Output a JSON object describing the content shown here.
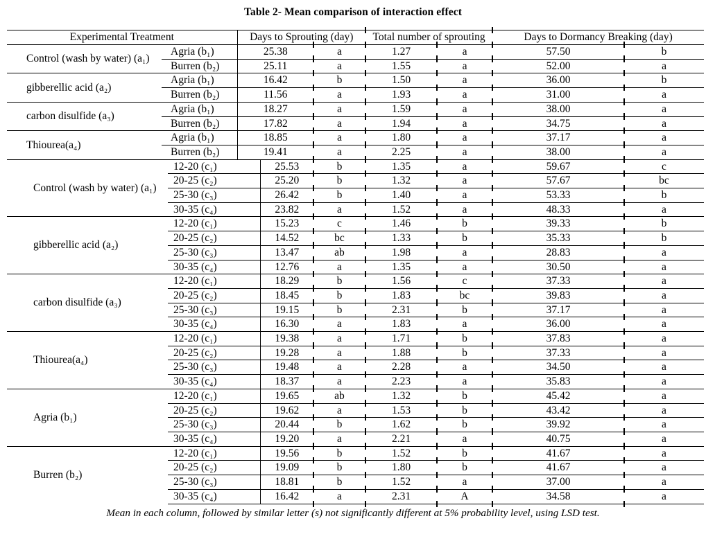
{
  "title": "Table 2- Mean comparison of interaction effect",
  "colors": {
    "ink": "#000000",
    "background": "#ffffff"
  },
  "table": {
    "headers": {
      "treatment": "Experimental Treatment",
      "days_sprouting": "Days to Sprouting (day)",
      "total_sprouting": "Total number of sprouting",
      "days_dormancy": "Days to Dormancy Breaking (day)"
    },
    "sections": [
      {
        "groups": [
          {
            "treatment": "Control (wash by water) (a₁)",
            "rows": [
              {
                "sub": "Agria (b₁)",
                "cells": [
                  "25.38",
                  "a",
                  "1.27",
                  "a",
                  "57.50",
                  "b"
                ]
              },
              {
                "sub": "Burren (b₂)",
                "cells": [
                  "25.11",
                  "a",
                  "1.55",
                  "a",
                  "52.00",
                  "a"
                ]
              }
            ]
          },
          {
            "treatment": "gibberellic acid (a₂)",
            "rows": [
              {
                "sub": "Agria (b₁)",
                "cells": [
                  "16.42",
                  "b",
                  "1.50",
                  "a",
                  "36.00",
                  "b"
                ]
              },
              {
                "sub": "Burren (b₂)",
                "cells": [
                  "11.56",
                  "a",
                  "1.93",
                  "a",
                  "31.00",
                  "a"
                ]
              }
            ]
          },
          {
            "treatment": "carbon disulfide (a₃)",
            "rows": [
              {
                "sub": "Agria (b₁)",
                "cells": [
                  "18.27",
                  "a",
                  "1.59",
                  "a",
                  "38.00",
                  "a"
                ]
              },
              {
                "sub": "Burren (b₂)",
                "cells": [
                  "17.82",
                  "a",
                  "1.94",
                  "a",
                  "34.75",
                  "a"
                ]
              }
            ]
          },
          {
            "treatment": "Thiourea(a₄)",
            "rows": [
              {
                "sub": "Agria (b₁)",
                "cells": [
                  "18.85",
                  "a",
                  "1.80",
                  "a",
                  "37.17",
                  "a"
                ]
              },
              {
                "sub": "Burren (b₂)",
                "cells": [
                  "19.41",
                  "a",
                  "2.25",
                  "a",
                  "38.00",
                  "a"
                ]
              }
            ]
          }
        ]
      },
      {
        "groups": [
          {
            "treatment": "Control (wash by water) (a₁)",
            "rows": [
              {
                "sub": "12-20 (c₁)",
                "cells": [
                  "25.53",
                  "b",
                  "1.35",
                  "a",
                  "59.67",
                  "c"
                ]
              },
              {
                "sub": "20-25 (c₂)",
                "cells": [
                  "25.20",
                  "b",
                  "1.32",
                  "a",
                  "57.67",
                  "bc"
                ]
              },
              {
                "sub": "25-30 (c₃)",
                "cells": [
                  "26.42",
                  "b",
                  "1.40",
                  "a",
                  "53.33",
                  "b"
                ]
              },
              {
                "sub": "30-35 (c₄)",
                "cells": [
                  "23.82",
                  "a",
                  "1.52",
                  "a",
                  "48.33",
                  "a"
                ]
              }
            ]
          },
          {
            "treatment": "gibberellic acid (a₂)",
            "rows": [
              {
                "sub": "12-20 (c₁)",
                "cells": [
                  "15.23",
                  "c",
                  "1.46",
                  "b",
                  "39.33",
                  "b"
                ]
              },
              {
                "sub": "20-25 (c₂)",
                "cells": [
                  "14.52",
                  "bc",
                  "1.33",
                  "b",
                  "35.33",
                  "b"
                ]
              },
              {
                "sub": "25-30 (c₃)",
                "cells": [
                  "13.47",
                  "ab",
                  "1.98",
                  "a",
                  "28.83",
                  "a"
                ]
              },
              {
                "sub": "30-35 (c₄)",
                "cells": [
                  "12.76",
                  "a",
                  "1.35",
                  "a",
                  "30.50",
                  "a"
                ]
              }
            ]
          },
          {
            "treatment": "carbon disulfide (a₃)",
            "rows": [
              {
                "sub": "12-20 (c₁)",
                "cells": [
                  "18.29",
                  "b",
                  "1.56",
                  "c",
                  "37.33",
                  "a"
                ]
              },
              {
                "sub": "20-25 (c₂)",
                "cells": [
                  "18.45",
                  "b",
                  "1.83",
                  "bc",
                  "39.83",
                  "a"
                ]
              },
              {
                "sub": "25-30 (c₃)",
                "cells": [
                  "19.15",
                  "b",
                  "2.31",
                  "b",
                  "37.17",
                  "a"
                ]
              },
              {
                "sub": "30-35 (c₄)",
                "cells": [
                  "16.30",
                  "a",
                  "1.83",
                  "a",
                  "36.00",
                  "a"
                ]
              }
            ]
          },
          {
            "treatment": "Thiourea(a₄)",
            "rows": [
              {
                "sub": "12-20 (c₁)",
                "cells": [
                  "19.38",
                  "a",
                  "1.71",
                  "b",
                  "37.83",
                  "a"
                ]
              },
              {
                "sub": "20-25 (c₂)",
                "cells": [
                  "19.28",
                  "a",
                  "1.88",
                  "b",
                  "37.33",
                  "a"
                ]
              },
              {
                "sub": "25-30 (c₃)",
                "cells": [
                  "19.48",
                  "a",
                  "2.28",
                  "a",
                  "34.50",
                  "a"
                ]
              },
              {
                "sub": "30-35 (c₄)",
                "cells": [
                  "18.37",
                  "a",
                  "2.23",
                  "a",
                  "35.83",
                  "a"
                ]
              }
            ]
          },
          {
            "treatment": "Agria (b₁)",
            "rows": [
              {
                "sub": "12-20 (c₁)",
                "cells": [
                  "19.65",
                  "ab",
                  "1.32",
                  "b",
                  "45.42",
                  "a"
                ]
              },
              {
                "sub": "20-25 (c₂)",
                "cells": [
                  "19.62",
                  "a",
                  "1.53",
                  "b",
                  "43.42",
                  "a"
                ]
              },
              {
                "sub": "25-30 (c₃)",
                "cells": [
                  "20.44",
                  "b",
                  "1.62",
                  "b",
                  "39.92",
                  "a"
                ]
              },
              {
                "sub": "30-35 (c₄)",
                "cells": [
                  "19.20",
                  "a",
                  "2.21",
                  "a",
                  "40.75",
                  "a"
                ]
              }
            ]
          },
          {
            "treatment": "Burren (b₂)",
            "rows": [
              {
                "sub": "12-20 (c₁)",
                "cells": [
                  "19.56",
                  "b",
                  "1.52",
                  "b",
                  "41.67",
                  "a"
                ]
              },
              {
                "sub": "20-25 (c₂)",
                "cells": [
                  "19.09",
                  "b",
                  "1.80",
                  "b",
                  "41.67",
                  "a"
                ]
              },
              {
                "sub": "25-30 (c₃)",
                "cells": [
                  "18.81",
                  "b",
                  "1.52",
                  "a",
                  "37.00",
                  "a"
                ]
              },
              {
                "sub": "30-35 (c₄)",
                "cells": [
                  "16.42",
                  "a",
                  "2.31",
                  "A",
                  "34.58",
                  "a"
                ]
              }
            ]
          }
        ]
      }
    ]
  },
  "footnote": "Mean in each column, followed by similar letter (s) not significantly different at 5% probability level, using LSD test."
}
